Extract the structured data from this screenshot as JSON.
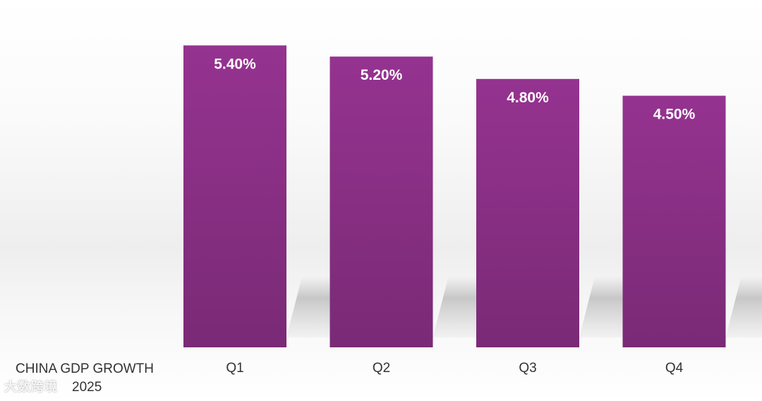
{
  "chart_data": {
    "type": "bar",
    "title": "CHINA GDP GROWTH 2025",
    "title_line1": "CHINA GDP GROWTH",
    "title_line2": "2025",
    "categories": [
      "Q1",
      "Q2",
      "Q3",
      "Q4"
    ],
    "values": [
      5.4,
      5.2,
      4.8,
      4.5
    ],
    "value_labels": [
      "5.40%",
      "5.20%",
      "4.80%",
      "4.50%"
    ],
    "unit": "%",
    "xlabel": "",
    "ylabel": "",
    "grid": false,
    "legend": "none",
    "colors": {
      "bar_top": "#953390",
      "bar_bottom": "#7a2a76",
      "label_text": "#ffffff",
      "axis_text": "#333333",
      "shadow": "#bdbdbd"
    }
  },
  "watermark": "大数跨境"
}
